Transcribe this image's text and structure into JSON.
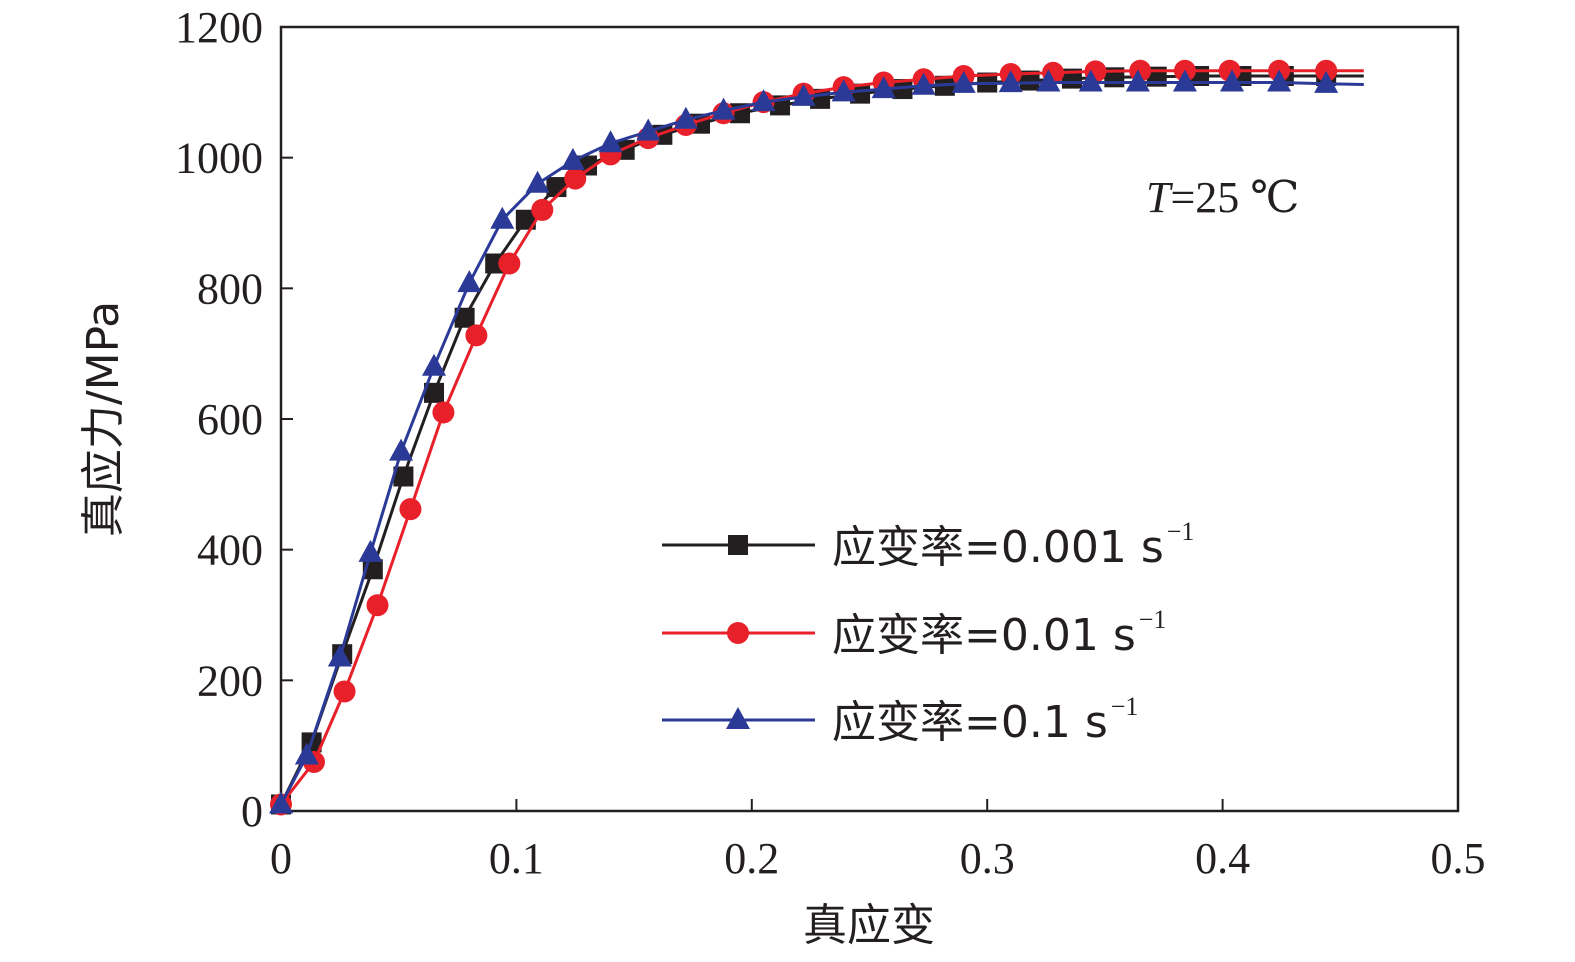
{
  "chart_data": {
    "type": "line",
    "xlabel": "真应变",
    "ylabel": "真应力/MPa",
    "xlim": [
      0,
      0.5
    ],
    "ylim": [
      0,
      1200
    ],
    "xticks": [
      "0",
      "0.1",
      "0.2",
      "0.3",
      "0.4",
      "0.5"
    ],
    "yticks": [
      "0",
      "200",
      "400",
      "600",
      "800",
      "1000",
      "1200"
    ],
    "xtick_values": [
      0,
      0.1,
      0.2,
      0.3,
      0.4,
      0.5
    ],
    "ytick_values": [
      0,
      200,
      400,
      600,
      800,
      1000,
      1200
    ],
    "annotation": {
      "italic": "T",
      "rest": "=25 ℃"
    },
    "legend_position": "lower-right",
    "series": [
      {
        "name": "应变率=0.001 s",
        "name_sup": "−1",
        "color": "#231f20",
        "marker": "square",
        "x": [
          0,
          0.013,
          0.026,
          0.039,
          0.052,
          0.065,
          0.078,
          0.091,
          0.104,
          0.117,
          0.13,
          0.146,
          0.162,
          0.178,
          0.195,
          0.212,
          0.229,
          0.246,
          0.264,
          0.282,
          0.3,
          0.318,
          0.336,
          0.354,
          0.372,
          0.39,
          0.408,
          0.426,
          0.444,
          0.46
        ],
        "y": [
          10,
          105,
          240,
          370,
          512,
          640,
          755,
          838,
          905,
          955,
          988,
          1012,
          1035,
          1052,
          1068,
          1080,
          1090,
          1098,
          1105,
          1110,
          1115,
          1118,
          1121,
          1123,
          1124,
          1125,
          1125,
          1125,
          1125,
          1125
        ]
      },
      {
        "name": "应变率=0.01 s",
        "name_sup": "−1",
        "color": "#e8202a",
        "marker": "circle",
        "x": [
          0,
          0.014,
          0.027,
          0.041,
          0.055,
          0.069,
          0.083,
          0.097,
          0.111,
          0.125,
          0.14,
          0.156,
          0.172,
          0.188,
          0.205,
          0.222,
          0.239,
          0.256,
          0.273,
          0.29,
          0.31,
          0.328,
          0.346,
          0.365,
          0.384,
          0.403,
          0.424,
          0.444,
          0.46
        ],
        "y": [
          10,
          75,
          183,
          315,
          462,
          610,
          728,
          838,
          920,
          968,
          1005,
          1030,
          1050,
          1068,
          1085,
          1098,
          1108,
          1115,
          1120,
          1125,
          1128,
          1130,
          1132,
          1133,
          1133,
          1133,
          1133,
          1133,
          1133
        ]
      },
      {
        "name": "应变率=0.1 s",
        "name_sup": "−1",
        "color": "#2b3a97",
        "marker": "triangle",
        "x": [
          0,
          0.011,
          0.025,
          0.038,
          0.051,
          0.065,
          0.08,
          0.094,
          0.109,
          0.124,
          0.14,
          0.156,
          0.172,
          0.188,
          0.205,
          0.222,
          0.239,
          0.256,
          0.273,
          0.29,
          0.31,
          0.326,
          0.344,
          0.364,
          0.384,
          0.404,
          0.424,
          0.444,
          0.46
        ],
        "y": [
          10,
          85,
          235,
          395,
          550,
          680,
          808,
          905,
          960,
          995,
          1022,
          1040,
          1058,
          1072,
          1085,
          1093,
          1100,
          1105,
          1110,
          1113,
          1114,
          1115,
          1115,
          1115,
          1115,
          1115,
          1115,
          1113,
          1112
        ]
      }
    ]
  }
}
